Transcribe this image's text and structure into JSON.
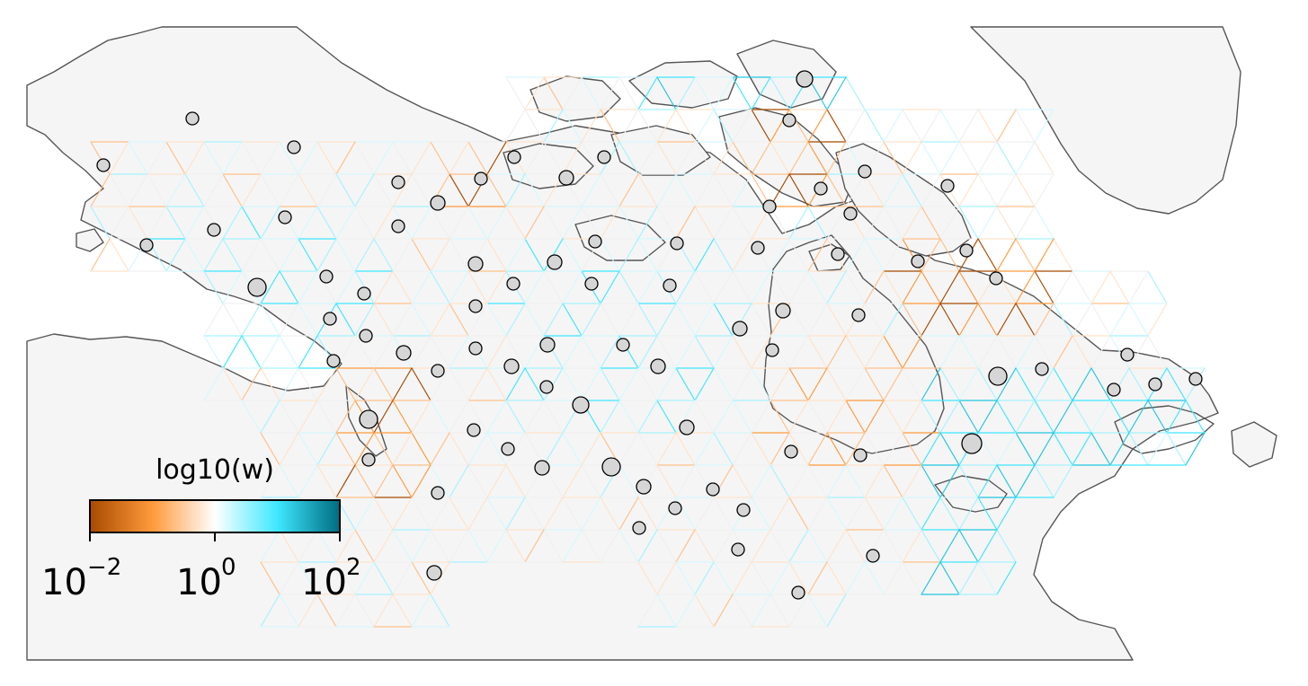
{
  "colors": {
    "land": "#f5f5f5",
    "coastline": "#555555",
    "node_fill": "#d6d6d6",
    "node_stroke": "#000000",
    "low": "#a84a00",
    "mid_low": "#ff9a3c",
    "mid": "#ffffff",
    "mid_high": "#3ee8ff",
    "high": "#006b80"
  },
  "colorbar": {
    "title": "log10(w)",
    "ticks": [
      {
        "base": "10",
        "exp": "−2",
        "value": -2
      },
      {
        "base": "10",
        "exp": "0",
        "value": 0
      },
      {
        "base": "10",
        "exp": "2",
        "value": 2
      }
    ],
    "range": [
      -2,
      2
    ]
  }
}
